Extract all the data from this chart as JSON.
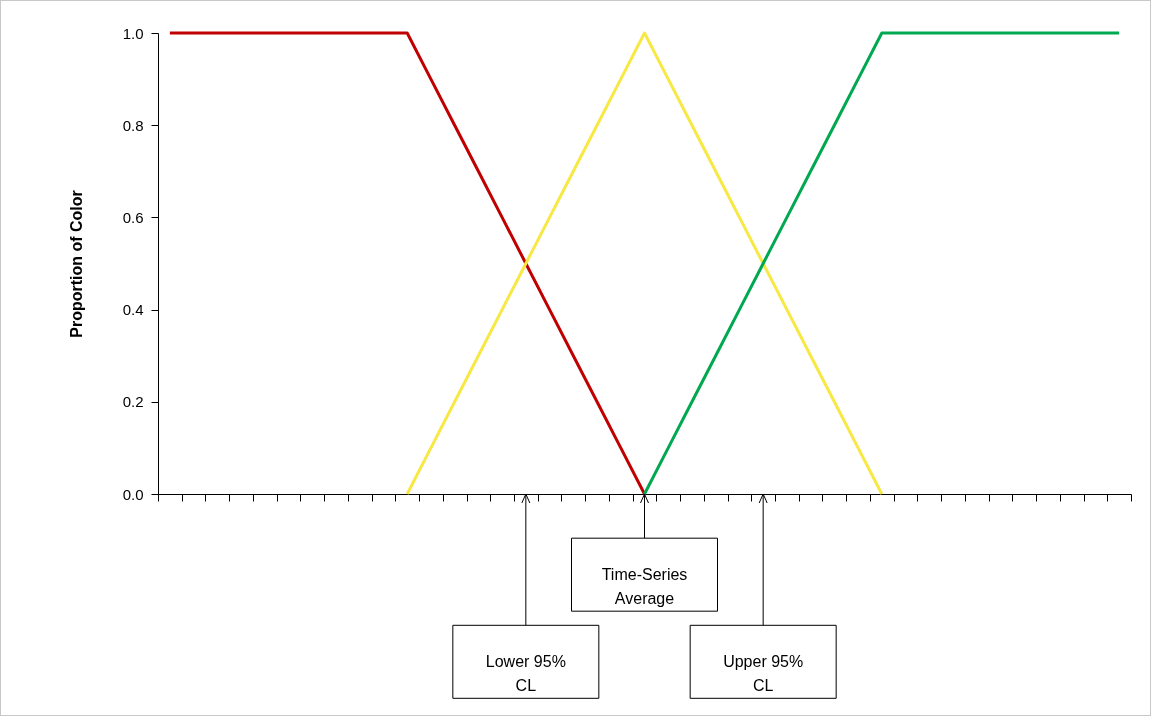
{
  "chart_data": {
    "type": "line",
    "ylabel": "Proportion of Color",
    "categories": [
      null,
      null,
      null,
      null,
      null,
      null,
      null,
      null,
      null,
      null,
      null,
      null,
      null,
      null,
      null,
      null,
      null,
      null,
      null,
      null,
      null,
      null,
      null,
      null,
      null,
      null,
      null,
      null,
      null,
      null,
      null,
      null,
      null,
      null,
      null,
      null,
      null,
      null,
      null,
      null,
      null
    ],
    "series": [
      {
        "color": "#c00000",
        "values": [
          1,
          1,
          1,
          1,
          1,
          1,
          1,
          1,
          1,
          1,
          1,
          0.9,
          0.8,
          0.7,
          0.6,
          0.5,
          0.4,
          0.3,
          0.2,
          0.1,
          0,
          null,
          null,
          null,
          null,
          null,
          null,
          null,
          null,
          null,
          null,
          null,
          null,
          null,
          null,
          null,
          null,
          null,
          null,
          null,
          null
        ]
      },
      {
        "color": "#f7e843",
        "values": [
          null,
          null,
          null,
          null,
          null,
          null,
          null,
          null,
          null,
          null,
          0,
          0.1,
          0.2,
          0.3,
          0.4,
          0.5,
          0.6,
          0.7,
          0.8,
          0.9,
          1,
          0.9,
          0.8,
          0.7,
          0.6,
          0.5,
          0.4,
          0.3,
          0.2,
          0.1,
          0,
          null,
          null,
          null,
          null,
          null,
          null,
          null,
          null,
          null,
          null
        ]
      },
      {
        "color": "#00a850",
        "values": [
          null,
          null,
          null,
          null,
          null,
          null,
          null,
          null,
          null,
          null,
          null,
          null,
          null,
          null,
          null,
          null,
          null,
          null,
          null,
          null,
          0,
          0.1,
          0.2,
          0.3,
          0.4,
          0.5,
          0.6,
          0.7,
          0.8,
          0.9,
          1,
          1,
          1,
          1,
          1,
          1,
          1,
          1,
          1,
          1,
          1
        ]
      }
    ],
    "ylim": [
      0,
      1
    ],
    "yticks": [
      {
        "value": 0,
        "label": "0.0"
      },
      {
        "value": 0.2,
        "label": "0.2"
      },
      {
        "value": 0.4,
        "label": "0.4"
      },
      {
        "value": 0.6,
        "label": "0.6"
      },
      {
        "value": 0.8,
        "label": "0.8"
      },
      {
        "value": 1,
        "label": "1.0"
      }
    ],
    "tick_labels": "y",
    "grid": false,
    "legend": false,
    "marker": "none",
    "line_style": "solid",
    "annotations": [
      "Lower 95% CL",
      "Time-Series Average",
      "Upper 95% CL"
    ]
  }
}
